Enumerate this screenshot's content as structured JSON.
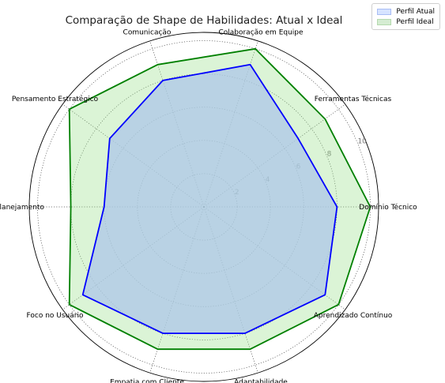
{
  "chart_data": {
    "type": "radar",
    "title": "Comparação de Shape de Habilidades: Atual x Ideal",
    "categories": [
      "Domínio Técnico",
      "Ferramentas Técnicas",
      "Colaboração em Equipe",
      "Comunicação",
      "Pensamento Estratégico",
      "Planejamento",
      "Foco no Usuário",
      "Empatia com Cliente",
      "Adaptabilidade",
      "Aprendizado Contínuo"
    ],
    "series": [
      {
        "name": "Perfil Atual",
        "values": [
          8,
          7,
          9,
          8,
          7,
          6,
          9,
          8,
          8,
          9
        ],
        "color": "#0000ff",
        "fill": "#aec7e8"
      },
      {
        "name": "Perfil Ideal",
        "values": [
          10,
          9,
          10,
          9,
          10,
          8,
          10,
          9,
          9,
          10
        ],
        "color": "#008000",
        "fill": "#98df8a"
      }
    ],
    "rticks": [
      2,
      4,
      6,
      8,
      10
    ],
    "rlim": [
      0,
      10.5
    ],
    "grid": true,
    "legend_position": "top-right"
  }
}
